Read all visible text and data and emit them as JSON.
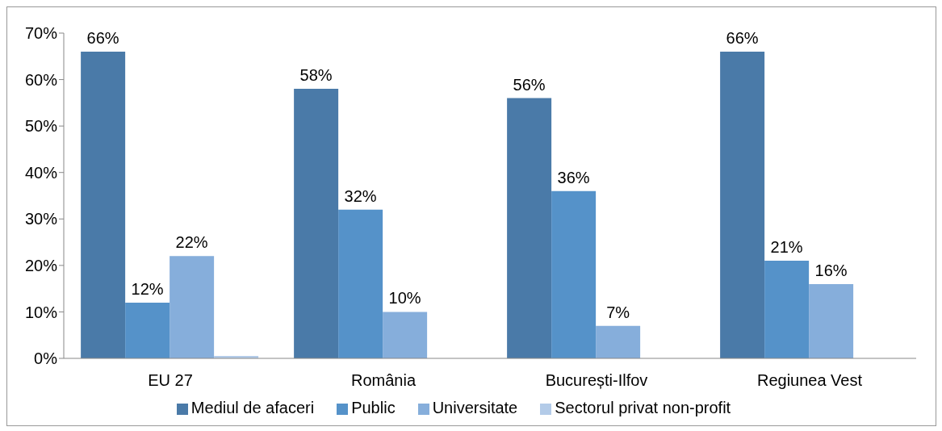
{
  "chart_data": {
    "type": "bar",
    "categories": [
      "EU 27",
      "România",
      "București-Ilfov",
      "Regiunea Vest"
    ],
    "series": [
      {
        "name": "Mediul de afaceri",
        "color": "#4a7aa8",
        "values": [
          66,
          58,
          56,
          66
        ],
        "value_labels": [
          "66%",
          "58%",
          "56%",
          "66%"
        ]
      },
      {
        "name": "Public",
        "color": "#5592c9",
        "values": [
          12,
          32,
          36,
          21
        ],
        "value_labels": [
          "12%",
          "32%",
          "36%",
          "21%"
        ]
      },
      {
        "name": "Universitate",
        "color": "#86aedb",
        "values": [
          22,
          10,
          7,
          16
        ],
        "value_labels": [
          "22%",
          "10%",
          "7%",
          "16%"
        ]
      },
      {
        "name": "Sectorul privat non-profit",
        "color": "#b3cbe8",
        "values": [
          0.5,
          null,
          null,
          null
        ]
      }
    ],
    "ylim": [
      0,
      70
    ],
    "yticks": [
      {
        "value": 0,
        "label": "0%"
      },
      {
        "value": 10,
        "label": "10%"
      },
      {
        "value": 20,
        "label": "20%"
      },
      {
        "value": 30,
        "label": "30%"
      },
      {
        "value": 40,
        "label": "40%"
      },
      {
        "value": 50,
        "label": "50%"
      },
      {
        "value": 60,
        "label": "60%"
      },
      {
        "value": 70,
        "label": "70%"
      }
    ],
    "legend": "bottom"
  }
}
